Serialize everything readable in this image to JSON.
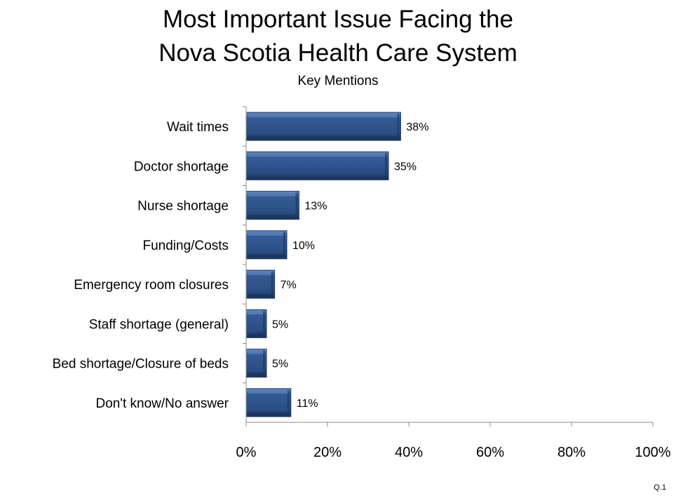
{
  "chart_data": {
    "type": "bar",
    "orientation": "horizontal",
    "title": "Most Important Issue Facing the Nova Scotia Health Care System",
    "title_lines": [
      "Most Important Issue Facing the",
      "Nova Scotia Health Care System"
    ],
    "subtitle": "Key Mentions",
    "categories": [
      "Wait times",
      "Doctor shortage",
      "Nurse shortage",
      "Funding/Costs",
      "Emergency room closures",
      "Staff shortage (general)",
      "Bed shortage/Closure of beds",
      "Don't know/No answer"
    ],
    "values": [
      38,
      35,
      13,
      10,
      7,
      5,
      5,
      11
    ],
    "value_labels": [
      "38%",
      "35%",
      "13%",
      "10%",
      "7%",
      "5%",
      "5%",
      "11%"
    ],
    "xlim": [
      0,
      100
    ],
    "x_ticks": [
      0,
      20,
      40,
      60,
      80,
      100
    ],
    "x_tick_labels": [
      "0%",
      "20%",
      "40%",
      "60%",
      "80%",
      "100%"
    ],
    "grid": false,
    "bar_color": "#2E5185",
    "bar_highlight_color": "#5A7FB5",
    "bar_shadow_color": "#1B3560"
  },
  "footnote": "Q.1"
}
